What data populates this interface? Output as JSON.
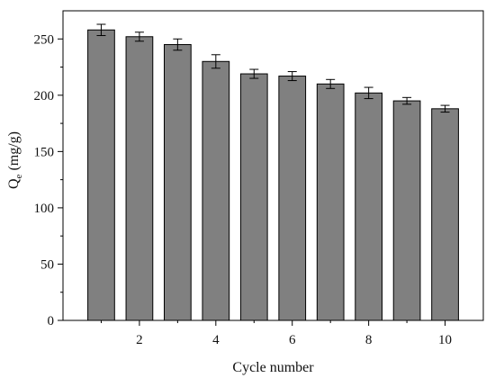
{
  "chart_data": {
    "type": "bar",
    "categories": [
      1,
      2,
      3,
      4,
      5,
      6,
      7,
      8,
      9,
      10
    ],
    "values": [
      258,
      252,
      245,
      230,
      219,
      217,
      210,
      202,
      195,
      188
    ],
    "error": [
      5,
      4,
      5,
      6,
      4,
      4,
      4,
      5,
      3,
      3
    ],
    "xlabel": "Cycle number",
    "ylabel_main": "Q",
    "ylabel_sub": "e",
    "ylabel_unit": " (mg/g)",
    "xlim": [
      0,
      11
    ],
    "ylim": [
      0,
      275
    ],
    "xticks": [
      2,
      4,
      6,
      8,
      10
    ],
    "yticks": [
      0,
      50,
      100,
      150,
      200,
      250
    ],
    "grid": false,
    "bar_color": "#808080",
    "bar_edge_color": "#000000"
  }
}
